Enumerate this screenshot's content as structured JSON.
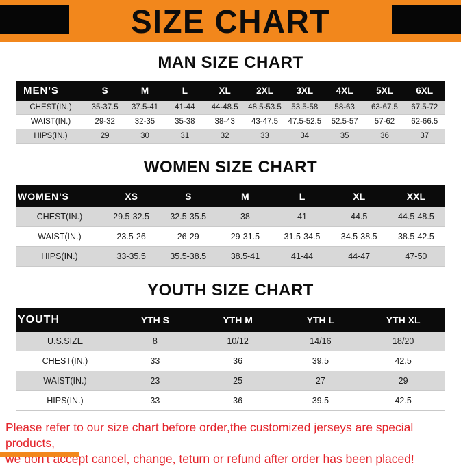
{
  "banner": {
    "title": "SIZE CHART"
  },
  "colors": {
    "accent_orange": "#f2871c",
    "header_black": "#0b0b0b",
    "row_shade_gray": "#d8d8d8",
    "warning_red": "#e4252c"
  },
  "sections": [
    {
      "id": "men",
      "heading": "MAN SIZE CHART",
      "header": [
        "MEN'S",
        "S",
        "M",
        "L",
        "XL",
        "2XL",
        "3XL",
        "4XL",
        "5XL",
        "6XL"
      ],
      "rows": [
        [
          "CHEST(IN.)",
          "35-37.5",
          "37.5-41",
          "41-44",
          "44-48.5",
          "48.5-53.5",
          "53.5-58",
          "58-63",
          "63-67.5",
          "67.5-72"
        ],
        [
          "WAIST(IN.)",
          "29-32",
          "32-35",
          "35-38",
          "38-43",
          "43-47.5",
          "47.5-52.5",
          "52.5-57",
          "57-62",
          "62-66.5"
        ],
        [
          "HIPS(IN.)",
          "29",
          "30",
          "31",
          "32",
          "33",
          "34",
          "35",
          "36",
          "37"
        ]
      ]
    },
    {
      "id": "women",
      "heading": "WOMEN SIZE CHART",
      "header": [
        "WOMEN'S",
        "XS",
        "S",
        "M",
        "L",
        "XL",
        "XXL"
      ],
      "rows": [
        [
          "CHEST(IN.)",
          "29.5-32.5",
          "32.5-35.5",
          "38",
          "41",
          "44.5",
          "44.5-48.5"
        ],
        [
          "WAIST(IN.)",
          "23.5-26",
          "26-29",
          "29-31.5",
          "31.5-34.5",
          "34.5-38.5",
          "38.5-42.5"
        ],
        [
          "HIPS(IN.)",
          "33-35.5",
          "35.5-38.5",
          "38.5-41",
          "41-44",
          "44-47",
          "47-50"
        ]
      ]
    },
    {
      "id": "youth",
      "heading": "YOUTH SIZE CHART",
      "header": [
        "YOUTH",
        "YTH S",
        "YTH M",
        "YTH L",
        "YTH XL"
      ],
      "rows": [
        [
          "U.S.SIZE",
          "8",
          "10/12",
          "14/16",
          "18/20"
        ],
        [
          "CHEST(IN.)",
          "33",
          "36",
          "39.5",
          "42.5"
        ],
        [
          "WAIST(IN.)",
          "23",
          "25",
          "27",
          "29"
        ],
        [
          "HIPS(IN.)",
          "33",
          "36",
          "39.5",
          "42.5"
        ]
      ]
    }
  ],
  "footer": {
    "line1": "Please refer to our size chart before order,the customized jerseys are special products,",
    "line2": "we don't accept cancel, change, teturn or refund after order has been placed!"
  }
}
